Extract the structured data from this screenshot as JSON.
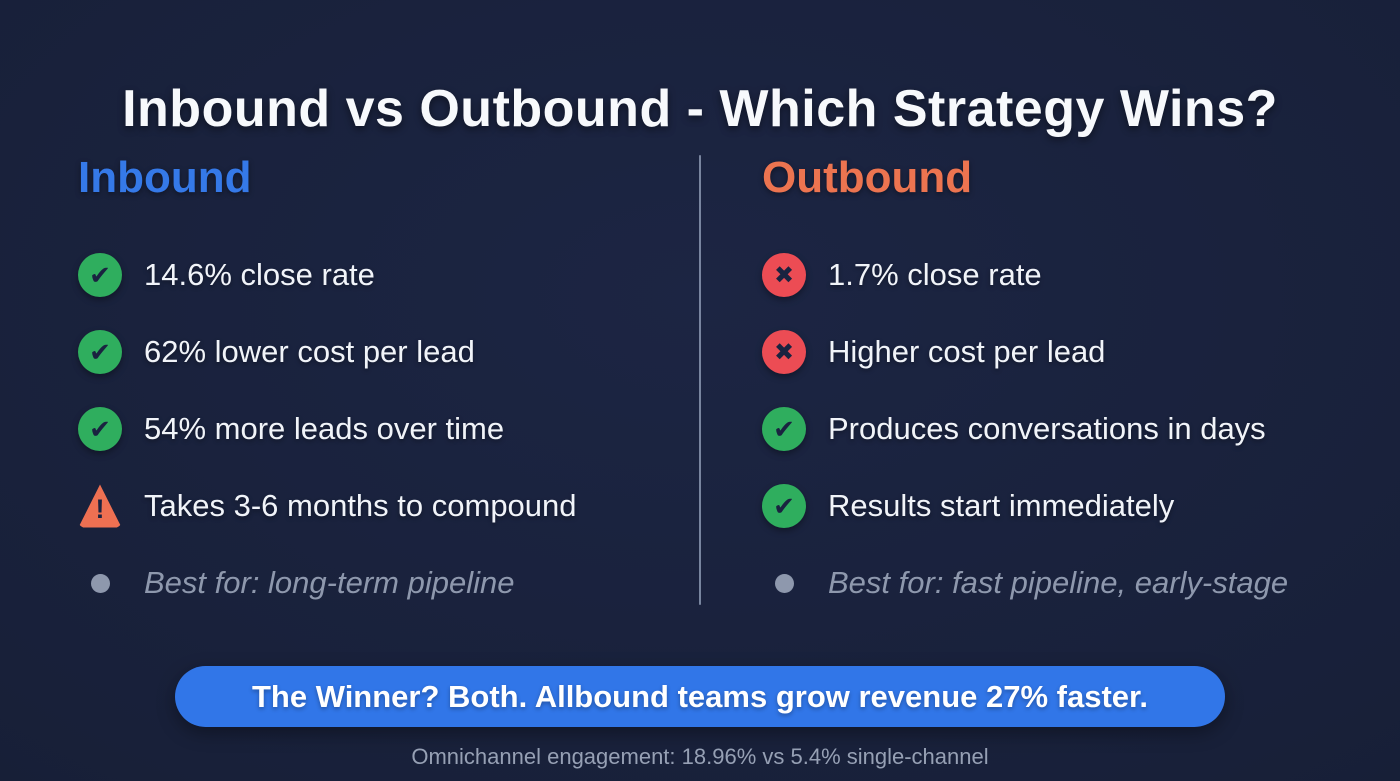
{
  "page": {
    "title": "Inbound vs Outbound - Which Strategy Wins?"
  },
  "colors": {
    "background": "#182039",
    "inbound_accent": "#3579e8",
    "outbound_accent": "#ec7450",
    "success_green": "#2fae5e",
    "error_red": "#ec4c54",
    "warning_orange": "#ee7052",
    "muted_text": "#8e98ad",
    "banner_blue": "#3176e8",
    "footer_text": "#96a0b4"
  },
  "inbound": {
    "heading": "Inbound",
    "items": [
      {
        "icon": "check-circle",
        "text": "14.6% close rate",
        "muted": false
      },
      {
        "icon": "check-circle",
        "text": "62% lower cost per lead",
        "muted": false
      },
      {
        "icon": "check-circle",
        "text": "54% more leads over time",
        "muted": false
      },
      {
        "icon": "warning-triangle",
        "text": "Takes 3-6 months to compound",
        "muted": false
      },
      {
        "icon": "bullet-dot",
        "text": "Best for: long-term pipeline",
        "muted": true
      }
    ]
  },
  "outbound": {
    "heading": "Outbound",
    "items": [
      {
        "icon": "x-circle",
        "text": "1.7% close rate",
        "muted": false
      },
      {
        "icon": "x-circle",
        "text": "Higher cost per lead",
        "muted": false
      },
      {
        "icon": "check-circle",
        "text": "Produces conversations in days",
        "muted": false
      },
      {
        "icon": "check-circle",
        "text": "Results start immediately",
        "muted": false
      },
      {
        "icon": "bullet-dot",
        "text": "Best for: fast pipeline, early-stage",
        "muted": true
      }
    ]
  },
  "banner": {
    "text": "The Winner? Both. Allbound teams grow revenue 27% faster."
  },
  "footer": {
    "text": "Omnichannel engagement: 18.96% vs 5.4% single-channel"
  }
}
